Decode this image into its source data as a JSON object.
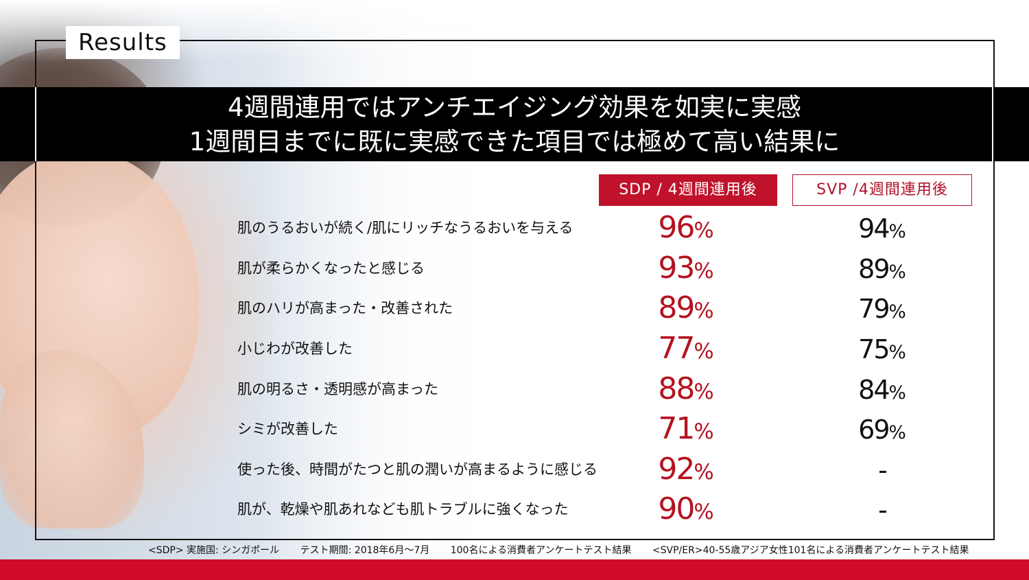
{
  "section_label": "Results",
  "title": {
    "line1": "4週間連用ではアンチエイジング効果を如実に実感",
    "line2": "1週間目までに既に実感できた項目では極めて高い結果に"
  },
  "columns": {
    "sdp": "SDP / 4週間連用後",
    "svp": "SVP /4週間連用後"
  },
  "percent_sign": "%",
  "rows": [
    {
      "label": "肌のうるおいが続く/肌にリッチなうるおいを与える",
      "sdp": "96",
      "svp": "94"
    },
    {
      "label": "肌が柔らかくなったと感じる",
      "sdp": "93",
      "svp": "89"
    },
    {
      "label": "肌のハリが高まった・改善された",
      "sdp": "89",
      "svp": "79"
    },
    {
      "label": "小じわが改善した",
      "sdp": "77",
      "svp": "75"
    },
    {
      "label": "肌の明るさ・透明感が高まった",
      "sdp": "88",
      "svp": "84"
    },
    {
      "label": "シミが改善した",
      "sdp": "71",
      "svp": "69"
    },
    {
      "label": "使った後、時間がたつと肌の潤いが高まるように感じる",
      "sdp": "92",
      "svp": "-"
    },
    {
      "label": "肌が、乾燥や肌あれなども肌トラブルに強くなった",
      "sdp": "90",
      "svp": "-"
    }
  ],
  "footnote": {
    "sdp_country": "<SDP> 実施国: シンガポール",
    "period": "テスト期間: 2018年6月～7月",
    "sdp_result": "100名による消費者アンケートテスト結果",
    "svp_result": "<SVP/ER>40-55歳アジア女性101名による消費者アンケートテスト結果"
  },
  "colors": {
    "accent_red": "#c0122b",
    "title_band": "#000000",
    "bottom_bar": "#d10a2a"
  }
}
